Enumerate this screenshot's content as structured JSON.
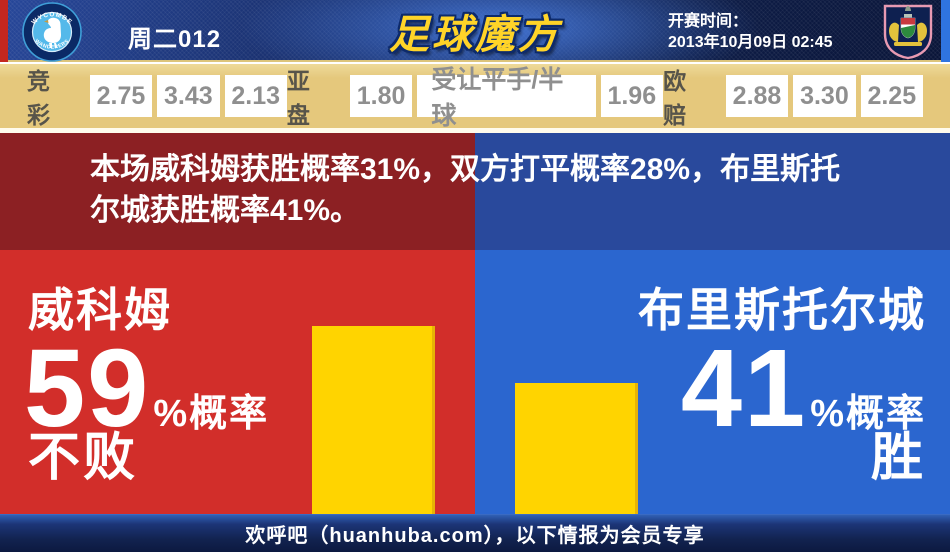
{
  "colors": {
    "home_red": "#d22e2a",
    "home_dark_red": "#8c2023",
    "away_blue": "#2b66cf",
    "away_dark_blue": "#29499c",
    "bar_yellow": "#ffd400",
    "odds_bar_tan": "#e5c87c",
    "logo_gold": "#ffd428",
    "topbar_navy": "#14275c"
  },
  "header": {
    "match_code": "周二012",
    "site_logo": "足球魔方",
    "kickoff_label": "开赛时间：",
    "kickoff_datetime": "2013年10月09日 02:45",
    "home_badge_top_text": "WYCOMBE",
    "home_badge_bottom_text": "WANDERERS"
  },
  "odds_bar": {
    "sections": [
      {
        "label": "竞彩",
        "values": [
          "2.75",
          "3.43",
          "2.13"
        ]
      },
      {
        "label": "亚盘",
        "values": [
          "1.80",
          "受让平手/半球",
          "1.96"
        ]
      },
      {
        "label": "欧赔",
        "values": [
          "2.88",
          "3.30",
          "2.25"
        ]
      }
    ]
  },
  "summary": {
    "text": "本场威科姆获胜概率31%，双方打平概率28%，布里斯托尔城获胜概率41%。"
  },
  "panels": {
    "home": {
      "team": "威科姆",
      "percent": "59",
      "suffix": "%概率",
      "outcome": "不败",
      "bar_pct": 59
    },
    "away": {
      "team": "布里斯托尔城",
      "percent": "41",
      "suffix": "%概率",
      "outcome": "胜",
      "bar_pct": 41
    }
  },
  "footer": {
    "text": "欢呼吧（huanhuba.com），以下情报为会员专享"
  },
  "chart_data": {
    "type": "bar",
    "categories": [
      "威科姆不败",
      "布里斯托尔城胜"
    ],
    "values": [
      59,
      41
    ],
    "annotations": {
      "home_win_pct": 31,
      "draw_pct": 28,
      "away_win_pct": 41
    }
  }
}
